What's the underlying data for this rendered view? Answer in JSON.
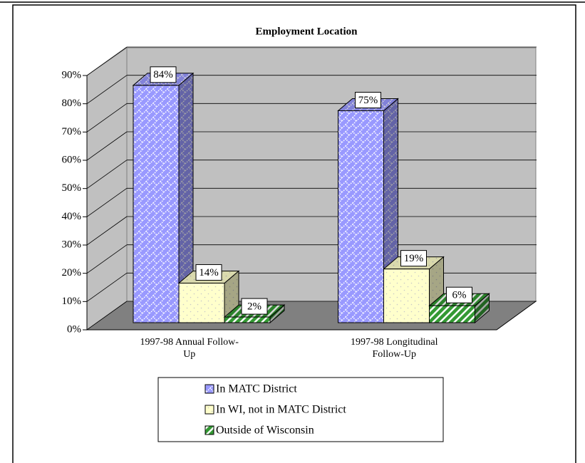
{
  "chart_data": {
    "type": "bar3d",
    "title": "Employment Location",
    "categories": [
      "1997-98 Annual Follow-Up",
      "1997-98 Longitudinal Follow-Up"
    ],
    "series": [
      {
        "name": "In MATC District",
        "color": "#9999ff",
        "values": [
          84,
          75
        ],
        "value_labels": [
          "84%",
          "75%"
        ]
      },
      {
        "name": "In WI, not in MATC District",
        "color": "#ffffcc",
        "values": [
          14,
          19
        ],
        "value_labels": [
          "14%",
          "19%"
        ]
      },
      {
        "name": "Outside of Wisconsin",
        "color": "#339933",
        "values": [
          2,
          6
        ],
        "value_labels": [
          "2%",
          "6%"
        ]
      }
    ],
    "ylim": [
      0,
      90
    ],
    "yticks": [
      {
        "value": 0,
        "label": "0%"
      },
      {
        "value": 10,
        "label": "10%"
      },
      {
        "value": 20,
        "label": "20%"
      },
      {
        "value": 30,
        "label": "30%"
      },
      {
        "value": 40,
        "label": "40%"
      },
      {
        "value": 50,
        "label": "50%"
      },
      {
        "value": 60,
        "label": "60%"
      },
      {
        "value": 70,
        "label": "70%"
      },
      {
        "value": 80,
        "label": "80%"
      },
      {
        "value": 90,
        "label": "90%"
      }
    ],
    "grid": true,
    "legend": "bottom"
  }
}
